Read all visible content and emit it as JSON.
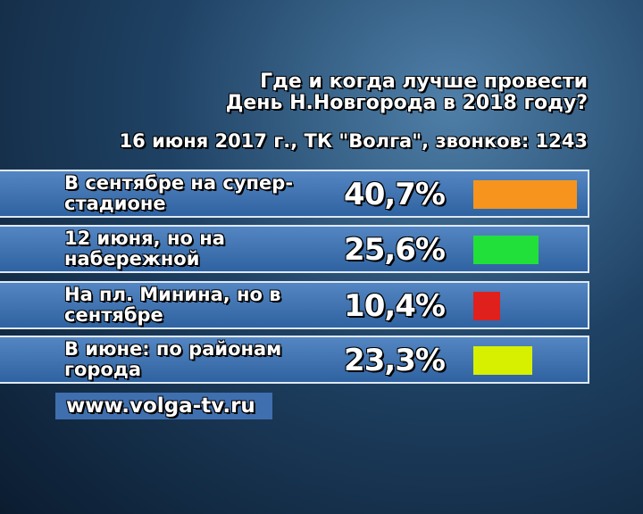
{
  "chart_data": {
    "type": "bar",
    "title": "Где и когда лучше провести День Н.Новгорода в 2018 году?",
    "subtitle": "16 июня 2017 г., ТК \"Волга\", звонков: 1243",
    "categories": [
      "В сентябре на супер-стадионе",
      "12 июня, но на набережной",
      "На пл. Минина, но в сентябре",
      "В июне: по районам города"
    ],
    "values": [
      40.7,
      25.6,
      10.4,
      23.3
    ],
    "value_labels": [
      "40,7%",
      "25,6%",
      "10,4%",
      "23,3%"
    ],
    "colors": [
      "#f7941d",
      "#22e03a",
      "#e0201c",
      "#d6f000"
    ],
    "footer": "www.volga-tv.ru"
  }
}
